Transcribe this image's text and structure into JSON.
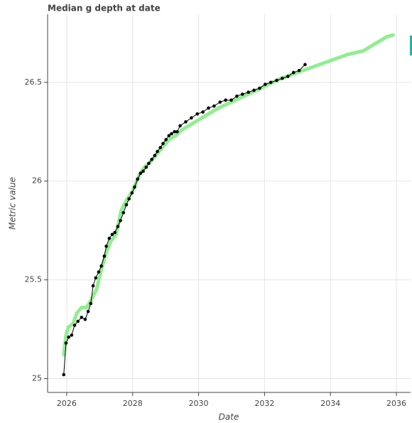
{
  "chart_data": {
    "type": "line",
    "title": "Median g depth at date",
    "x_label": "Date",
    "y_label": "Metric value",
    "xlim": [
      2025.42,
      2036.43
    ],
    "ylim": [
      24.93,
      26.845
    ],
    "xticks": [
      2026,
      2028,
      2030,
      2032,
      2034,
      2036
    ],
    "yticks": [
      25,
      {
        "value": 25.5,
        "label": "25.5"
      },
      26,
      {
        "value": 26.5,
        "label": "26.5"
      }
    ],
    "grid": true,
    "series": [
      {
        "color": "#90ee90",
        "line_width": 5,
        "markers": false,
        "x": [
          2025.91,
          2025.98,
          2026.05,
          2026.2,
          2026.3,
          2026.45,
          2026.6,
          2026.75,
          2026.9,
          2027.05,
          2027.2,
          2027.35,
          2027.5,
          2027.65,
          2027.8,
          2028.0,
          2028.2,
          2028.35,
          2028.5,
          2028.7,
          2028.9,
          2029.1,
          2029.3,
          2029.5,
          2029.8,
          2030.0,
          2030.3,
          2030.6,
          2031.0,
          2031.5,
          2032.0,
          2032.5,
          2033.0,
          2033.5,
          2034.0,
          2034.5,
          2035.0,
          2035.3,
          2035.5,
          2035.7,
          2035.9
        ],
        "values": [
          25.12,
          25.22,
          25.26,
          25.28,
          25.33,
          25.36,
          25.36,
          25.4,
          25.45,
          25.55,
          25.64,
          25.7,
          25.73,
          25.85,
          25.9,
          25.95,
          26.03,
          26.07,
          26.09,
          26.13,
          26.17,
          26.21,
          26.23,
          26.26,
          26.29,
          26.31,
          26.34,
          26.37,
          26.4,
          26.44,
          26.48,
          26.52,
          26.55,
          26.58,
          26.61,
          26.64,
          26.66,
          26.69,
          26.71,
          26.73,
          26.74
        ]
      },
      {
        "color": "#000000",
        "line_width": 1,
        "markers": true,
        "x": [
          2025.91,
          2025.98,
          2026.06,
          2026.15,
          2026.24,
          2026.34,
          2026.45,
          2026.56,
          2026.65,
          2026.73,
          2026.8,
          2026.88,
          2026.97,
          2027.05,
          2027.14,
          2027.2,
          2027.29,
          2027.38,
          2027.46,
          2027.55,
          2027.63,
          2027.72,
          2027.81,
          2027.89,
          2027.98,
          2028.06,
          2028.15,
          2028.24,
          2028.32,
          2028.41,
          2028.49,
          2028.58,
          2028.67,
          2028.75,
          2028.84,
          2028.92,
          2029.01,
          2029.1,
          2029.18,
          2029.27,
          2029.35,
          2029.44,
          2029.61,
          2029.78,
          2029.96,
          2030.13,
          2030.3,
          2030.47,
          2030.65,
          2030.82,
          2030.99,
          2031.16,
          2031.33,
          2031.51,
          2031.68,
          2031.85,
          2032.02,
          2032.19,
          2032.37,
          2032.54,
          2032.71,
          2032.88,
          2033.05,
          2033.23
        ],
        "values": [
          25.02,
          25.18,
          25.21,
          25.22,
          25.27,
          25.29,
          25.31,
          25.3,
          25.34,
          25.38,
          25.47,
          25.51,
          25.54,
          25.57,
          25.62,
          25.67,
          25.71,
          25.73,
          25.74,
          25.77,
          25.8,
          25.84,
          25.88,
          25.91,
          25.94,
          25.97,
          26.01,
          26.04,
          26.05,
          26.07,
          26.09,
          26.11,
          26.13,
          26.15,
          26.17,
          26.19,
          26.21,
          26.23,
          26.24,
          26.25,
          26.25,
          26.28,
          26.3,
          26.32,
          26.34,
          26.35,
          26.37,
          26.38,
          26.4,
          26.41,
          26.41,
          26.43,
          26.44,
          26.45,
          26.46,
          26.47,
          26.49,
          26.5,
          26.51,
          26.52,
          26.53,
          26.55,
          26.56,
          26.59
        ]
      }
    ]
  }
}
